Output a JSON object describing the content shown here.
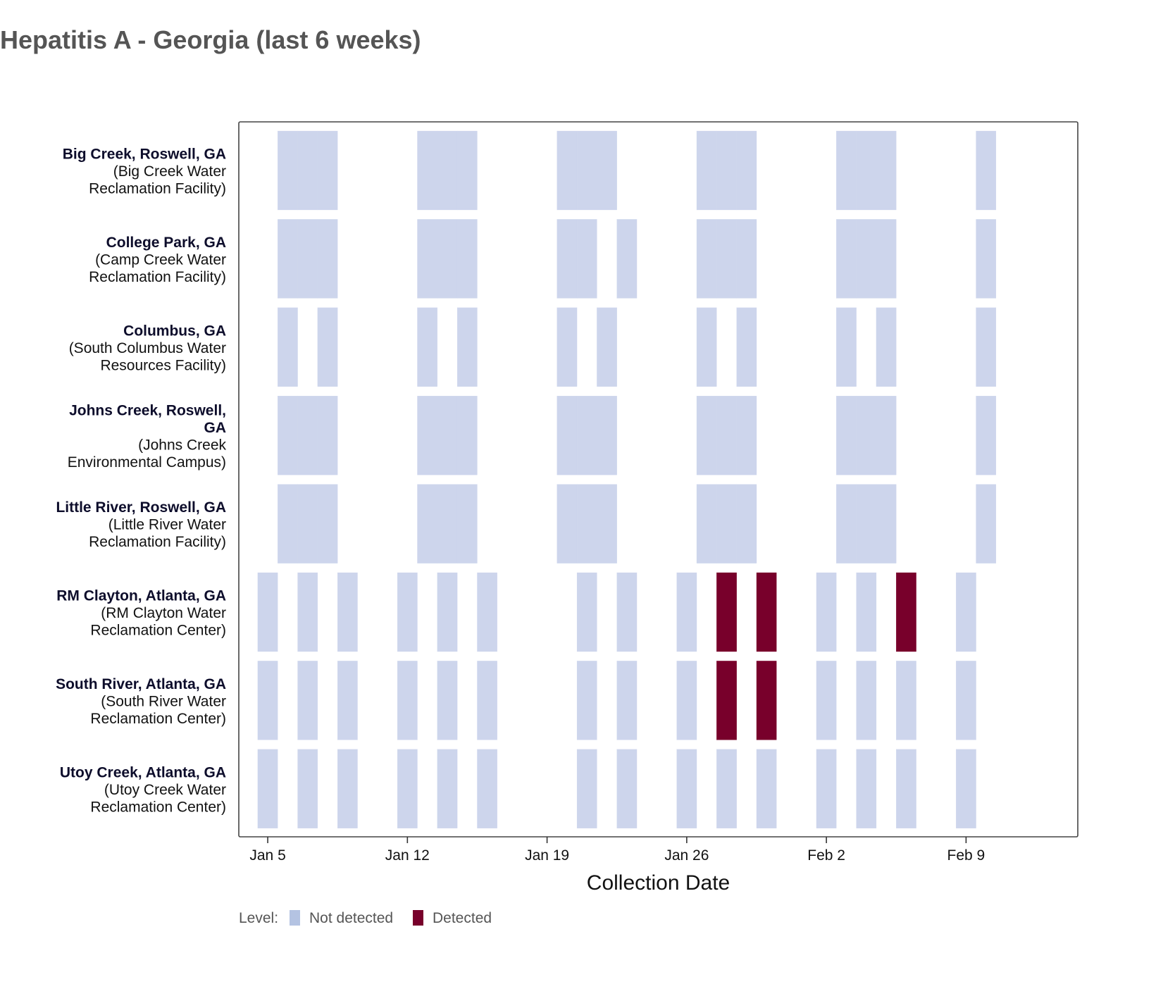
{
  "title": "Hepatitis A - Georgia (last 6 weeks)",
  "colors": {
    "not_detected": "#cdd5ec",
    "detected": "#78002b",
    "legend_not_detected": "#b4c3e2"
  },
  "chart_data": {
    "type": "heatmap",
    "title": "Hepatitis A - Georgia (last 6 weeks)",
    "xlabel": "Collection Date",
    "ylabel": "",
    "x_ticks": [
      "Jan 5",
      "Jan 12",
      "Jan 19",
      "Jan 26",
      "Feb 2",
      "Feb 9"
    ],
    "x_range_days": [
      3.55,
      45.6
    ],
    "x_day_note": "day 5 = Jan 5; day 36 = Feb 5",
    "legend": {
      "title": "Level:",
      "entries": [
        "Not detected",
        "Detected"
      ],
      "placement": "bottom-left"
    },
    "sites": [
      {
        "name": "Big Creek, Roswell, GA",
        "facility": [
          "(Big Creek Water",
          "Reclamation Facility)"
        ],
        "samples": [
          {
            "day": 6,
            "level": "Not detected"
          },
          {
            "day": 7,
            "level": "Not detected"
          },
          {
            "day": 8,
            "level": "Not detected"
          },
          {
            "day": 13,
            "level": "Not detected"
          },
          {
            "day": 14,
            "level": "Not detected"
          },
          {
            "day": 15,
            "level": "Not detected"
          },
          {
            "day": 20,
            "level": "Not detected"
          },
          {
            "day": 21,
            "level": "Not detected"
          },
          {
            "day": 22,
            "level": "Not detected"
          },
          {
            "day": 27,
            "level": "Not detected"
          },
          {
            "day": 28,
            "level": "Not detected"
          },
          {
            "day": 29,
            "level": "Not detected"
          },
          {
            "day": 34,
            "level": "Not detected"
          },
          {
            "day": 35,
            "level": "Not detected"
          },
          {
            "day": 36,
            "level": "Not detected"
          },
          {
            "day": 41,
            "level": "Not detected"
          }
        ]
      },
      {
        "name": "College Park, GA",
        "facility": [
          "(Camp Creek Water",
          "Reclamation Facility)"
        ],
        "samples": [
          {
            "day": 6,
            "level": "Not detected"
          },
          {
            "day": 7,
            "level": "Not detected"
          },
          {
            "day": 8,
            "level": "Not detected"
          },
          {
            "day": 13,
            "level": "Not detected"
          },
          {
            "day": 14,
            "level": "Not detected"
          },
          {
            "day": 15,
            "level": "Not detected"
          },
          {
            "day": 20,
            "level": "Not detected"
          },
          {
            "day": 21,
            "level": "Not detected"
          },
          {
            "day": 23,
            "level": "Not detected"
          },
          {
            "day": 27,
            "level": "Not detected"
          },
          {
            "day": 28,
            "level": "Not detected"
          },
          {
            "day": 29,
            "level": "Not detected"
          },
          {
            "day": 34,
            "level": "Not detected"
          },
          {
            "day": 35,
            "level": "Not detected"
          },
          {
            "day": 36,
            "level": "Not detected"
          },
          {
            "day": 41,
            "level": "Not detected"
          }
        ]
      },
      {
        "name": "Columbus, GA",
        "facility": [
          "(South Columbus Water",
          "Resources Facility)"
        ],
        "samples": [
          {
            "day": 6,
            "level": "Not detected"
          },
          {
            "day": 8,
            "level": "Not detected"
          },
          {
            "day": 13,
            "level": "Not detected"
          },
          {
            "day": 15,
            "level": "Not detected"
          },
          {
            "day": 20,
            "level": "Not detected"
          },
          {
            "day": 22,
            "level": "Not detected"
          },
          {
            "day": 27,
            "level": "Not detected"
          },
          {
            "day": 29,
            "level": "Not detected"
          },
          {
            "day": 34,
            "level": "Not detected"
          },
          {
            "day": 36,
            "level": "Not detected"
          },
          {
            "day": 41,
            "level": "Not detected"
          }
        ]
      },
      {
        "name": "Johns Creek, Roswell, GA",
        "name_lines": [
          "Johns Creek, Roswell,",
          "GA"
        ],
        "facility": [
          "(Johns Creek",
          "Environmental Campus)"
        ],
        "samples": [
          {
            "day": 6,
            "level": "Not detected"
          },
          {
            "day": 7,
            "level": "Not detected"
          },
          {
            "day": 8,
            "level": "Not detected"
          },
          {
            "day": 13,
            "level": "Not detected"
          },
          {
            "day": 14,
            "level": "Not detected"
          },
          {
            "day": 15,
            "level": "Not detected"
          },
          {
            "day": 20,
            "level": "Not detected"
          },
          {
            "day": 21,
            "level": "Not detected"
          },
          {
            "day": 22,
            "level": "Not detected"
          },
          {
            "day": 27,
            "level": "Not detected"
          },
          {
            "day": 28,
            "level": "Not detected"
          },
          {
            "day": 29,
            "level": "Not detected"
          },
          {
            "day": 34,
            "level": "Not detected"
          },
          {
            "day": 35,
            "level": "Not detected"
          },
          {
            "day": 36,
            "level": "Not detected"
          },
          {
            "day": 41,
            "level": "Not detected"
          }
        ]
      },
      {
        "name": "Little River, Roswell, GA",
        "facility": [
          "(Little River Water",
          "Reclamation Facility)"
        ],
        "samples": [
          {
            "day": 6,
            "level": "Not detected"
          },
          {
            "day": 7,
            "level": "Not detected"
          },
          {
            "day": 8,
            "level": "Not detected"
          },
          {
            "day": 13,
            "level": "Not detected"
          },
          {
            "day": 14,
            "level": "Not detected"
          },
          {
            "day": 15,
            "level": "Not detected"
          },
          {
            "day": 20,
            "level": "Not detected"
          },
          {
            "day": 21,
            "level": "Not detected"
          },
          {
            "day": 22,
            "level": "Not detected"
          },
          {
            "day": 27,
            "level": "Not detected"
          },
          {
            "day": 28,
            "level": "Not detected"
          },
          {
            "day": 29,
            "level": "Not detected"
          },
          {
            "day": 34,
            "level": "Not detected"
          },
          {
            "day": 35,
            "level": "Not detected"
          },
          {
            "day": 36,
            "level": "Not detected"
          },
          {
            "day": 41,
            "level": "Not detected"
          }
        ]
      },
      {
        "name": "RM Clayton, Atlanta, GA",
        "facility": [
          "(RM Clayton Water",
          "Reclamation Center)"
        ],
        "samples": [
          {
            "day": 5,
            "level": "Not detected"
          },
          {
            "day": 7,
            "level": "Not detected"
          },
          {
            "day": 9,
            "level": "Not detected"
          },
          {
            "day": 12,
            "level": "Not detected"
          },
          {
            "day": 14,
            "level": "Not detected"
          },
          {
            "day": 16,
            "level": "Not detected"
          },
          {
            "day": 21,
            "level": "Not detected"
          },
          {
            "day": 23,
            "level": "Not detected"
          },
          {
            "day": 26,
            "level": "Not detected"
          },
          {
            "day": 28,
            "level": "Detected"
          },
          {
            "day": 30,
            "level": "Detected"
          },
          {
            "day": 33,
            "level": "Not detected"
          },
          {
            "day": 35,
            "level": "Not detected"
          },
          {
            "day": 37,
            "level": "Detected"
          },
          {
            "day": 40,
            "level": "Not detected"
          }
        ]
      },
      {
        "name": "South River, Atlanta, GA",
        "facility": [
          "(South River Water",
          "Reclamation Center)"
        ],
        "samples": [
          {
            "day": 5,
            "level": "Not detected"
          },
          {
            "day": 7,
            "level": "Not detected"
          },
          {
            "day": 9,
            "level": "Not detected"
          },
          {
            "day": 12,
            "level": "Not detected"
          },
          {
            "day": 14,
            "level": "Not detected"
          },
          {
            "day": 16,
            "level": "Not detected"
          },
          {
            "day": 21,
            "level": "Not detected"
          },
          {
            "day": 23,
            "level": "Not detected"
          },
          {
            "day": 26,
            "level": "Not detected"
          },
          {
            "day": 28,
            "level": "Detected"
          },
          {
            "day": 30,
            "level": "Detected"
          },
          {
            "day": 33,
            "level": "Not detected"
          },
          {
            "day": 35,
            "level": "Not detected"
          },
          {
            "day": 37,
            "level": "Not detected"
          },
          {
            "day": 40,
            "level": "Not detected"
          }
        ]
      },
      {
        "name": "Utoy Creek, Atlanta, GA",
        "facility": [
          "(Utoy Creek Water",
          "Reclamation Center)"
        ],
        "samples": [
          {
            "day": 5,
            "level": "Not detected"
          },
          {
            "day": 7,
            "level": "Not detected"
          },
          {
            "day": 9,
            "level": "Not detected"
          },
          {
            "day": 12,
            "level": "Not detected"
          },
          {
            "day": 14,
            "level": "Not detected"
          },
          {
            "day": 16,
            "level": "Not detected"
          },
          {
            "day": 21,
            "level": "Not detected"
          },
          {
            "day": 23,
            "level": "Not detected"
          },
          {
            "day": 26,
            "level": "Not detected"
          },
          {
            "day": 28,
            "level": "Not detected"
          },
          {
            "day": 30,
            "level": "Not detected"
          },
          {
            "day": 33,
            "level": "Not detected"
          },
          {
            "day": 35,
            "level": "Not detected"
          },
          {
            "day": 37,
            "level": "Not detected"
          },
          {
            "day": 40,
            "level": "Not detected"
          }
        ]
      }
    ]
  }
}
